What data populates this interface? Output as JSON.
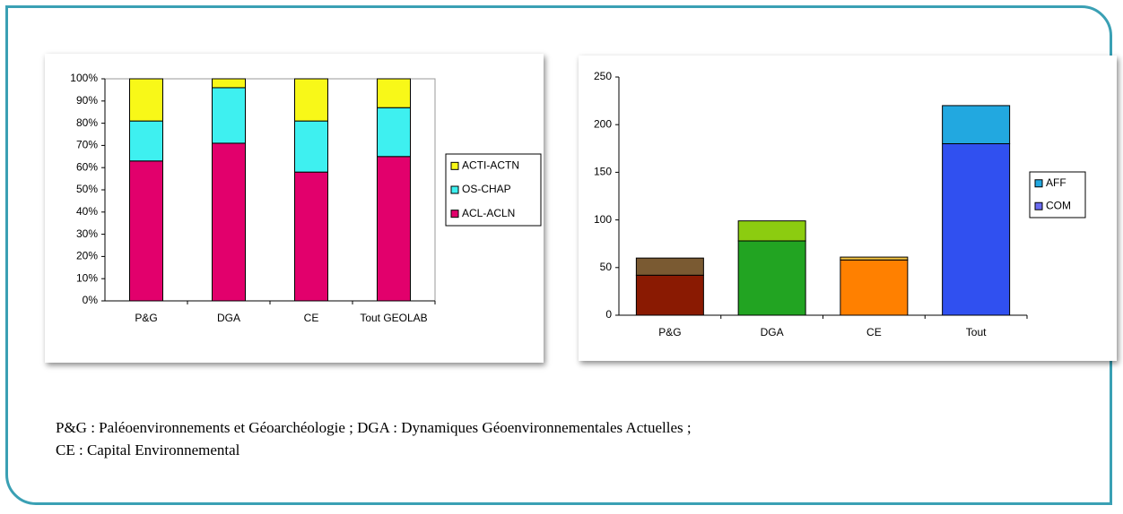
{
  "chart_data": [
    {
      "type": "bar",
      "stacked": true,
      "categories": [
        "P&G",
        "DGA",
        "CE",
        "Tout GEOLAB"
      ],
      "series": [
        {
          "name": "ACL-ACLN",
          "color": "#e2006c",
          "values": [
            63,
            71,
            58,
            65
          ]
        },
        {
          "name": "OS-CHAP",
          "color": "#3ef0f0",
          "values": [
            18,
            25,
            23,
            22
          ]
        },
        {
          "name": "ACTI-ACTN",
          "color": "#f8f818",
          "values": [
            19,
            4,
            19,
            13
          ]
        }
      ],
      "ylim": [
        0,
        100
      ],
      "yticks": [
        {
          "value": 0,
          "label": "0%"
        },
        {
          "value": 10,
          "label": "10%"
        },
        {
          "value": 20,
          "label": "20%"
        },
        {
          "value": 30,
          "label": "30%"
        },
        {
          "value": 40,
          "label": "40%"
        },
        {
          "value": 50,
          "label": "50%"
        },
        {
          "value": 60,
          "label": "60%"
        },
        {
          "value": 70,
          "label": "70%"
        },
        {
          "value": 80,
          "label": "80%"
        },
        {
          "value": 90,
          "label": "90%"
        },
        {
          "value": 100,
          "label": "100%"
        }
      ],
      "grid": false,
      "legend": "right"
    },
    {
      "type": "bar",
      "stacked": true,
      "categories": [
        "P&G",
        "DGA",
        "CE",
        "Tout"
      ],
      "series": [
        {
          "name": "COM",
          "color": "#6a6af0",
          "colors": [
            "#8a1a02",
            "#22a422",
            "#ff8000",
            "#3050f0"
          ],
          "values": [
            42,
            78,
            58,
            180
          ]
        },
        {
          "name": "AFF",
          "color": "#22a8e0",
          "colors": [
            "#7a5a32",
            "#8ccc10",
            "#f0c040",
            "#22a8e0"
          ],
          "values": [
            18,
            21,
            3,
            40
          ]
        }
      ],
      "ylim": [
        0,
        250
      ],
      "yticks": [
        0,
        50,
        100,
        150,
        200,
        250
      ],
      "grid": false,
      "legend": "right"
    }
  ],
  "caption": [
    "P&G : Paléoenvironnements et Géoarchéologie ; DGA : Dynamiques Géoenvironnementales Actuelles ;",
    "CE : Capital Environnemental"
  ]
}
